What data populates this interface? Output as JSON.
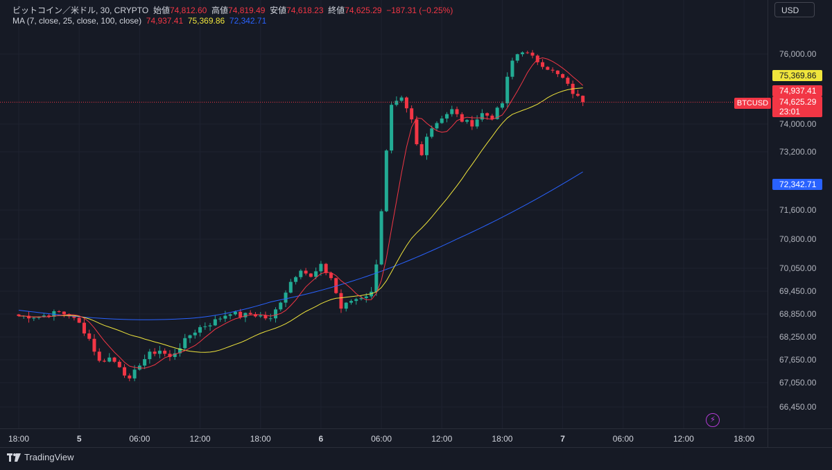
{
  "header": {
    "symbol": "ビットコイン／米ドル, 30, CRYPTO",
    "open_label": "始値",
    "open": "74,812.60",
    "high_label": "高値",
    "high": "74,819.49",
    "low_label": "安値",
    "low": "74,618.23",
    "close_label": "終値",
    "close": "74,625.29",
    "change": "−187.31 (−0.25%)",
    "ma_label": "MA (7, close, 25, close, 100, close)",
    "ma7": "74,937.41",
    "ma25": "75,369.86",
    "ma100": "72,342.71"
  },
  "currency": "USD",
  "symbol_tag": "BTCUSD",
  "price_tags": {
    "ma25": "75,369.86",
    "ma7": "74,937.41",
    "last": "74,625.29",
    "countdown": "23:01",
    "ma100": "72,342.71"
  },
  "colors": {
    "up": "#22ab94",
    "down": "#f23645",
    "ma7": "#f23645",
    "ma25": "#f0e53c",
    "ma100": "#2962ff",
    "bg": "#161a25"
  },
  "icons": {
    "logo": "tradingview-logo-icon",
    "alert": "lightning-icon"
  },
  "footer": {
    "brand": "TradingView"
  },
  "chart_data": {
    "type": "candlestick",
    "y_ticks": [
      "76,000.00",
      "74,000.00",
      "73,200.00",
      "71,600.00",
      "70,800.00",
      "70,050.00",
      "69,450.00",
      "68,850.00",
      "68,250.00",
      "67,650.00",
      "67,050.00",
      "66,450.00"
    ],
    "y_tick_values": [
      76000,
      74000,
      73200,
      71600,
      70800,
      70050,
      69450,
      68850,
      68250,
      67650,
      67050,
      66450
    ],
    "x_ticks": [
      "18:00",
      "5",
      "06:00",
      "12:00",
      "18:00",
      "6",
      "06:00",
      "12:00",
      "18:00",
      "7",
      "06:00",
      "12:00",
      "18:00"
    ],
    "x_tick_hours": [
      0,
      6,
      12,
      18,
      24,
      30,
      36,
      42,
      48,
      54,
      60,
      66,
      72
    ],
    "close_path": [
      [
        0,
        68800
      ],
      [
        2,
        68780
      ],
      [
        4,
        68900
      ],
      [
        5,
        68820
      ],
      [
        6,
        68600
      ],
      [
        7,
        68200
      ],
      [
        8,
        67600
      ],
      [
        9,
        67700
      ],
      [
        10,
        67500
      ],
      [
        11,
        67100
      ],
      [
        12,
        67550
      ],
      [
        13,
        67800
      ],
      [
        14,
        67900
      ],
      [
        15,
        67700
      ],
      [
        16,
        68000
      ],
      [
        17,
        68300
      ],
      [
        18,
        68500
      ],
      [
        19,
        68600
      ],
      [
        20,
        68750
      ],
      [
        21,
        68900
      ],
      [
        22,
        68800
      ],
      [
        23,
        68850
      ],
      [
        24,
        68800
      ],
      [
        25,
        68700
      ],
      [
        26,
        69200
      ],
      [
        27,
        69700
      ],
      [
        28,
        70050
      ],
      [
        29,
        69800
      ],
      [
        30,
        70100
      ],
      [
        31,
        69800
      ],
      [
        32,
        69000
      ],
      [
        33,
        69200
      ],
      [
        34,
        69300
      ],
      [
        35,
        69400
      ],
      [
        35.5,
        70200
      ],
      [
        36,
        71600
      ],
      [
        36.5,
        73200
      ],
      [
        37,
        74500
      ],
      [
        37.5,
        74600
      ],
      [
        38,
        74700
      ],
      [
        38.5,
        74400
      ],
      [
        39,
        74100
      ],
      [
        39.5,
        73400
      ],
      [
        40,
        73100
      ],
      [
        40.5,
        73700
      ],
      [
        41,
        73900
      ],
      [
        42,
        74200
      ],
      [
        43,
        74400
      ],
      [
        44,
        74100
      ],
      [
        45,
        74000
      ],
      [
        46,
        74300
      ],
      [
        47,
        74200
      ],
      [
        48,
        74600
      ],
      [
        48.5,
        75300
      ],
      [
        49,
        75800
      ],
      [
        49.5,
        76000
      ],
      [
        50,
        76100
      ],
      [
        51,
        75900
      ],
      [
        52,
        75700
      ],
      [
        53,
        75500
      ],
      [
        54,
        75300
      ],
      [
        55,
        74900
      ],
      [
        56,
        74625
      ]
    ],
    "ma7": "74,937.41",
    "ma25": "75,369.86",
    "ma100": "72,342.71",
    "last_price": 74625.29
  }
}
